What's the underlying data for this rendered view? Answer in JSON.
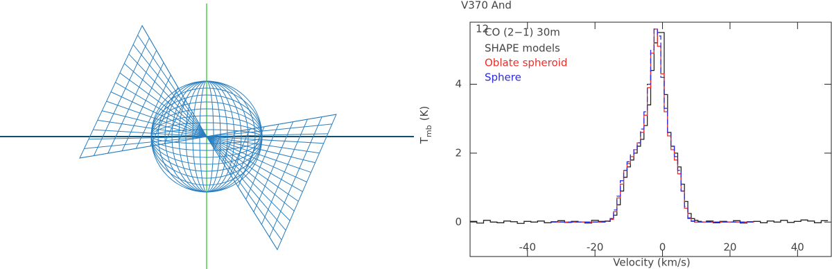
{
  "chart_data": {
    "type": "step",
    "title": "V370 And",
    "x_label": "Velocity (km/s)",
    "y_label": "T",
    "y_label_sub": "mb",
    "y_label_unit": "(K)",
    "legend_title": "SHAPE models",
    "xlim": [
      -57,
      50
    ],
    "ylim": [
      -1,
      5.8
    ],
    "xticks": [
      -40,
      -20,
      0,
      20,
      40
    ],
    "yticks": [
      0,
      2,
      4
    ],
    "x": [
      -56,
      -54,
      -52,
      -50,
      -48,
      -46,
      -44,
      -42,
      -40,
      -38,
      -36,
      -34,
      -32,
      -30,
      -28,
      -26,
      -24,
      -22,
      -20,
      -18,
      -16,
      -15,
      -14,
      -13,
      -12,
      -11,
      -10,
      -9,
      -8,
      -7,
      -6,
      -5,
      -4,
      -3,
      -2,
      -1,
      0,
      1,
      2,
      3,
      4,
      5,
      6,
      7,
      8,
      9,
      10,
      11,
      12,
      14,
      16,
      18,
      20,
      22,
      24,
      26,
      28,
      30,
      32,
      34,
      36,
      38,
      40,
      42,
      44,
      46,
      48
    ],
    "series": [
      {
        "name": "CO (2−1) 30m",
        "superscript": "12",
        "color": "#222222",
        "dashed": false,
        "values": [
          0.02,
          -0.03,
          0.05,
          0,
          -0.02,
          0.03,
          0.01,
          -0.04,
          0.02,
          0,
          0.03,
          -0.02,
          0.01,
          0.04,
          -0.01,
          0.02,
          0,
          -0.03,
          0.05,
          0.02,
          0.03,
          0.1,
          0.2,
          0.5,
          0.9,
          1.3,
          1.6,
          1.8,
          2.0,
          2.2,
          2.4,
          2.8,
          3.4,
          4.4,
          5.2,
          5.5,
          5.5,
          3.7,
          2.6,
          2.2,
          2.0,
          1.6,
          1.1,
          0.6,
          0.25,
          0.1,
          0.05,
          0.02,
          0,
          0.03,
          -0.02,
          0.02,
          0,
          0.04,
          -0.03,
          0.01,
          0.02,
          -0.02,
          0.03,
          0,
          0.05,
          -0.01,
          0.02,
          0.06,
          0.03,
          -0.02,
          0.04
        ]
      },
      {
        "name": "Oblate spheroid",
        "color": "#e8302a",
        "dashed": false,
        "values": [
          null,
          null,
          null,
          null,
          null,
          null,
          null,
          null,
          null,
          null,
          null,
          null,
          0,
          0,
          0,
          0,
          0,
          0,
          0,
          0,
          0.02,
          0.08,
          0.3,
          0.7,
          1.1,
          1.5,
          1.7,
          1.9,
          2.1,
          2.3,
          2.6,
          3.1,
          3.9,
          4.9,
          5.6,
          5.1,
          4.3,
          3.2,
          2.5,
          2.1,
          1.8,
          1.4,
          0.9,
          0.4,
          0.1,
          0.02,
          0,
          0,
          0,
          0,
          0,
          0,
          0,
          0,
          0,
          0,
          null,
          null,
          null,
          null,
          null,
          null,
          null,
          null,
          null,
          null,
          null
        ]
      },
      {
        "name": "Sphere",
        "color": "#2a2ae0",
        "dashed": true,
        "values": [
          null,
          null,
          null,
          null,
          null,
          null,
          null,
          null,
          null,
          null,
          null,
          null,
          0,
          0,
          0,
          0,
          0,
          0,
          0,
          0,
          0.02,
          0.1,
          0.35,
          0.75,
          1.2,
          1.5,
          1.75,
          1.95,
          2.1,
          2.3,
          2.7,
          3.2,
          4.0,
          5.0,
          5.6,
          5.4,
          4.2,
          3.3,
          2.6,
          2.2,
          1.9,
          1.5,
          0.9,
          0.45,
          0.12,
          0.03,
          0,
          0,
          0,
          0,
          0,
          0,
          0,
          0,
          0,
          0,
          null,
          null,
          null,
          null,
          null,
          null,
          null,
          null,
          null,
          null,
          null
        ]
      }
    ]
  }
}
